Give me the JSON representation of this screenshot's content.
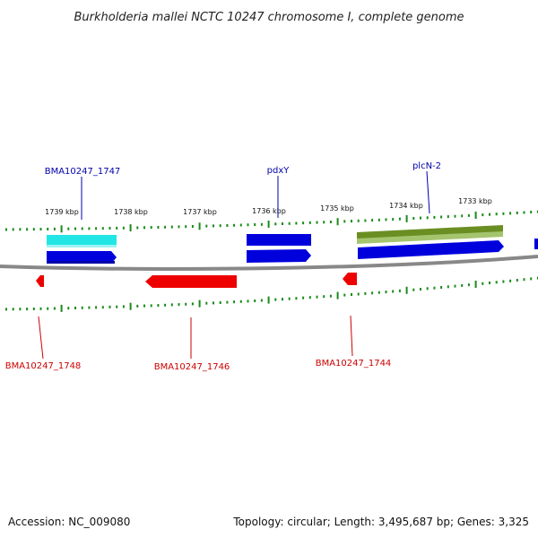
{
  "title": "Burkholderia mallei NCTC 10247 chromosome I, complete genome",
  "footer": {
    "accession": "Accession: NC_009080",
    "summary": "Topology: circular; Length: 3,495,687 bp; Genes: 3,325"
  },
  "colors": {
    "forward_cds": "#0000dd",
    "reverse_cds": "#ee0000",
    "label_forward": "#0000aa",
    "label_reverse": "#cc0000",
    "tick": "#1a8a1a",
    "backbone": "#888888",
    "gene_cyan": "#22e5e5",
    "gene_olive": "#6b8e23"
  },
  "scale_labels": [
    "1739 kbp",
    "1738 kbp",
    "1737 kbp",
    "1736 kbp",
    "1735 kbp",
    "1734 kbp",
    "1733 kbp"
  ],
  "gene_labels_top": [
    "BMA10247_1747",
    "pdxY",
    "plcN-2"
  ],
  "gene_labels_bottom": [
    "BMA10247_1748",
    "BMA10247_1746",
    "BMA10247_1744"
  ]
}
